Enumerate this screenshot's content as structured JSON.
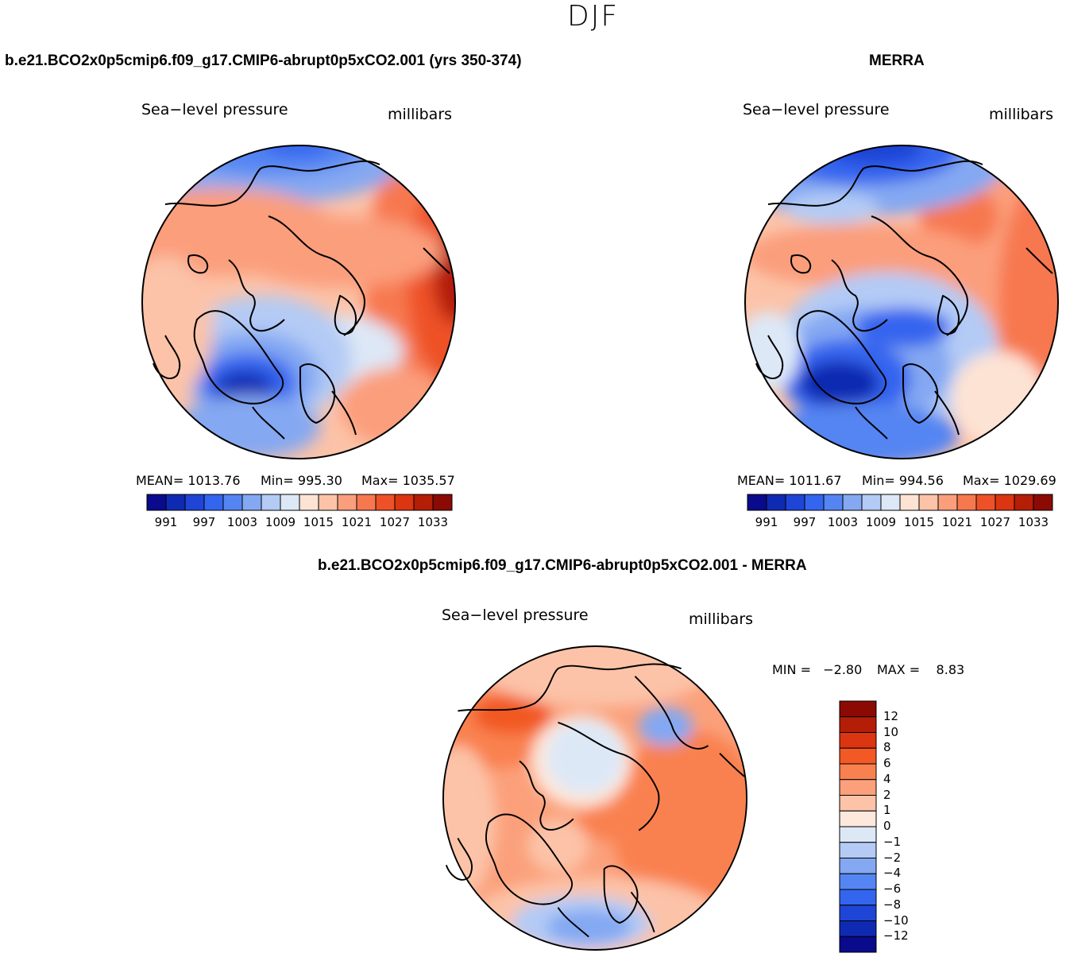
{
  "page": {
    "suptitle": "DJF"
  },
  "panels": [
    {
      "id": "model",
      "case_title": "b.e21.BCO2x0p5cmip6.f09_g17.CMIP6-abrupt0p5xCO2.001 (yrs 350-374)",
      "variable": "Sea−level pressure",
      "units": "millibars",
      "stats": {
        "mean_label": "MEAN=",
        "mean": "1013.76",
        "min_label": "Min=",
        "min": "995.30",
        "max_label": "Max=",
        "max": "1035.57"
      }
    },
    {
      "id": "obs",
      "case_title": "MERRA",
      "variable": "Sea−level pressure",
      "units": "millibars",
      "stats": {
        "mean_label": "MEAN=",
        "mean": "1011.67",
        "min_label": "Min=",
        "min": "994.56",
        "max_label": "Max=",
        "max": "1029.69"
      }
    },
    {
      "id": "diff",
      "case_title": "b.e21.BCO2x0p5cmip6.f09_g17.CMIP6-abrupt0p5xCO2.001 - MERRA",
      "variable": "Sea−level pressure",
      "units": "millibars",
      "stats": {
        "min_label": "MIN =",
        "min": "−2.80",
        "max_label": "MAX =",
        "max": "8.83"
      }
    }
  ],
  "chart_data": [
    {
      "type": "heatmap",
      "title": "b.e21.BCO2x0p5cmip6.f09_g17.CMIP6-abrupt0p5xCO2.001 (yrs 350-374)",
      "projection": "polar stereographic (north pole)",
      "variable": "Sea-level pressure",
      "units": "millibars",
      "mean": 1013.76,
      "min": 995.3,
      "max": 1035.57,
      "colorbar_ticks": [
        "991",
        "997",
        "1003",
        "1009",
        "1015",
        "1021",
        "1027",
        "1033"
      ],
      "colorbar_levels": [
        988,
        991,
        994,
        997,
        1000,
        1003,
        1006,
        1009,
        1012,
        1015,
        1018,
        1021,
        1024,
        1027,
        1030,
        1033,
        1036
      ]
    },
    {
      "type": "heatmap",
      "title": "MERRA",
      "projection": "polar stereographic (north pole)",
      "variable": "Sea-level pressure",
      "units": "millibars",
      "mean": 1011.67,
      "min": 994.56,
      "max": 1029.69,
      "colorbar_ticks": [
        "991",
        "997",
        "1003",
        "1009",
        "1015",
        "1021",
        "1027",
        "1033"
      ],
      "colorbar_levels": [
        988,
        991,
        994,
        997,
        1000,
        1003,
        1006,
        1009,
        1012,
        1015,
        1018,
        1021,
        1024,
        1027,
        1030,
        1033,
        1036
      ]
    },
    {
      "type": "heatmap",
      "title": "b.e21.BCO2x0p5cmip6.f09_g17.CMIP6-abrupt0p5xCO2.001 - MERRA",
      "projection": "polar stereographic (north pole)",
      "variable": "Sea-level pressure",
      "units": "millibars",
      "min": -2.8,
      "max": 8.83,
      "colorbar_ticks": [
        "12",
        "10",
        "8",
        "6",
        "4",
        "2",
        "1",
        "0",
        "−1",
        "−2",
        "−4",
        "−6",
        "−8",
        "−10",
        "−12"
      ],
      "colorbar_levels": [
        -12,
        -10,
        -8,
        -6,
        -4,
        -2,
        -1,
        0,
        1,
        2,
        4,
        6,
        8,
        10,
        12
      ]
    }
  ],
  "palettes": {
    "abs": [
      "#0a0a8c",
      "#0f2ab2",
      "#1f45d6",
      "#3465ef",
      "#5585f2",
      "#84a8f2",
      "#b3cbf5",
      "#dde8f7",
      "#fde3d4",
      "#fcc3a8",
      "#fb9e7c",
      "#f7784f",
      "#ee5127",
      "#dc3511",
      "#b41e07",
      "#8c0a04"
    ],
    "diff": [
      "#8c0a04",
      "#b41e07",
      "#dc3511",
      "#f25924",
      "#f9814f",
      "#fba07b",
      "#fcc3a8",
      "#fde8dc",
      "#dde8f7",
      "#b3cbf5",
      "#84a8f2",
      "#5585f2",
      "#3465ef",
      "#1f45d6",
      "#0f2ab2",
      "#0a0a8c"
    ]
  }
}
